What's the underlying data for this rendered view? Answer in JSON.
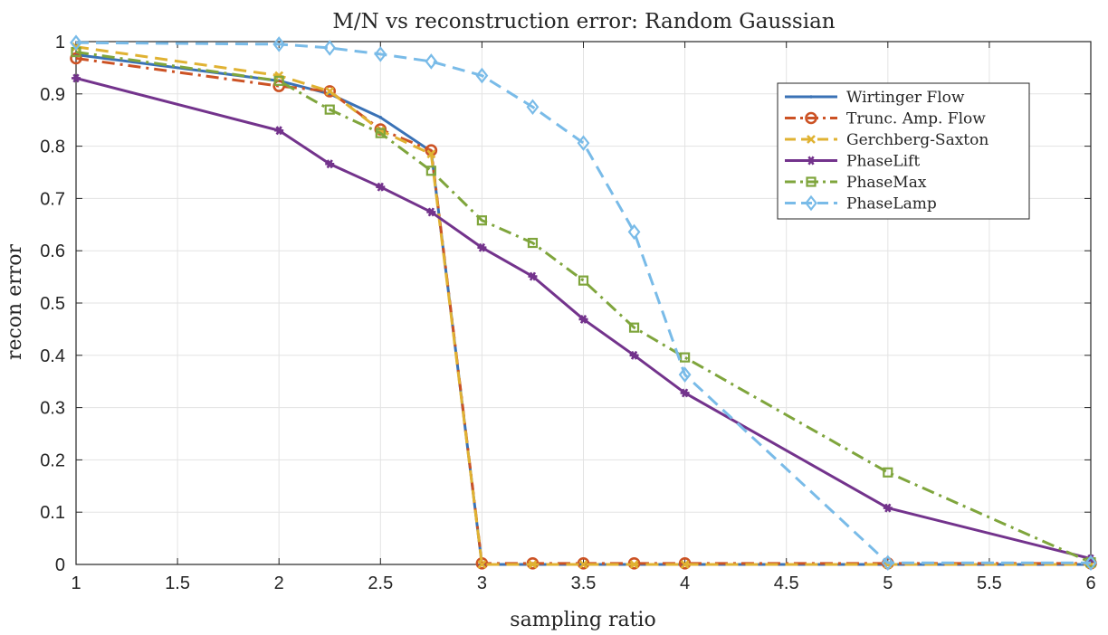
{
  "chart_data": {
    "type": "line",
    "title": "M/N vs reconstruction error: Random Gaussian",
    "xlabel": "sampling ratio",
    "ylabel": "recon error",
    "xlim": [
      1,
      6
    ],
    "ylim": [
      0,
      1
    ],
    "xticks": [
      "1",
      "1.5",
      "2",
      "2.5",
      "3",
      "3.5",
      "4",
      "4.5",
      "5",
      "5.5",
      "6"
    ],
    "yticks": [
      "0",
      "0.1",
      "0.2",
      "0.3",
      "0.4",
      "0.5",
      "0.6",
      "0.7",
      "0.8",
      "0.9",
      "1"
    ],
    "grid": true,
    "legend_position": "top-right",
    "series": [
      {
        "name": "Wirtinger Flow",
        "color": "#3a72b6",
        "dash": "solid",
        "marker": "point",
        "x": [
          1,
          2,
          2.25,
          2.5,
          2.75,
          3,
          3.25,
          3.5,
          3.75,
          4,
          5,
          6
        ],
        "y": [
          0.975,
          0.925,
          0.9,
          0.855,
          0.79,
          0.0,
          0.0,
          0.0,
          0.0,
          0.0,
          0.0,
          0.0
        ]
      },
      {
        "name": "Trunc. Amp. Flow",
        "color": "#cc5224",
        "dash": "dashdot",
        "marker": "circle",
        "x": [
          1,
          2,
          2.25,
          2.5,
          2.75,
          3,
          3.25,
          3.5,
          3.75,
          4,
          5,
          6
        ],
        "y": [
          0.968,
          0.915,
          0.905,
          0.832,
          0.792,
          0.002,
          0.002,
          0.002,
          0.002,
          0.002,
          0.002,
          0.002
        ]
      },
      {
        "name": "Gerchberg-Saxton",
        "color": "#e0b232",
        "dash": "dashed",
        "marker": "x",
        "x": [
          1,
          2,
          2.25,
          2.5,
          2.75,
          3,
          3.25,
          3.5,
          3.75,
          4,
          5,
          6
        ],
        "y": [
          0.99,
          0.935,
          0.905,
          0.83,
          0.785,
          0.0,
          0.0,
          0.0,
          0.0,
          0.0,
          0.0,
          0.0
        ]
      },
      {
        "name": "PhaseLift",
        "color": "#73338c",
        "dash": "solid",
        "marker": "asterisk",
        "x": [
          1,
          2,
          2.25,
          2.5,
          2.75,
          3,
          3.25,
          3.5,
          3.75,
          4,
          5,
          6
        ],
        "y": [
          0.93,
          0.83,
          0.766,
          0.722,
          0.674,
          0.606,
          0.551,
          0.469,
          0.4,
          0.328,
          0.108,
          0.011
        ]
      },
      {
        "name": "PhaseMax",
        "color": "#7fa53c",
        "dash": "dashdot",
        "marker": "square",
        "x": [
          1,
          2,
          2.25,
          2.5,
          2.75,
          3,
          3.25,
          3.5,
          3.75,
          4,
          5,
          6
        ],
        "y": [
          0.98,
          0.925,
          0.87,
          0.825,
          0.753,
          0.658,
          0.615,
          0.543,
          0.453,
          0.396,
          0.176,
          0.004
        ]
      },
      {
        "name": "PhaseLamp",
        "color": "#79bbe8",
        "dash": "dashed",
        "marker": "diamond",
        "x": [
          1,
          2,
          2.25,
          2.5,
          2.75,
          3,
          3.25,
          3.5,
          3.75,
          4,
          5,
          6
        ],
        "y": [
          0.998,
          0.995,
          0.988,
          0.976,
          0.962,
          0.935,
          0.875,
          0.806,
          0.636,
          0.363,
          0.003,
          0.003
        ]
      }
    ]
  }
}
